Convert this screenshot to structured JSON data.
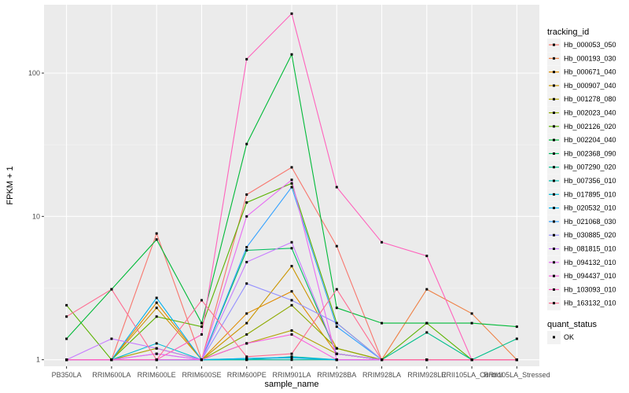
{
  "chart_data": {
    "type": "line",
    "title": "",
    "xlabel": "sample_name",
    "ylabel": "FPKM + 1",
    "yscale": "log10",
    "ylim": [
      0.9,
      300
    ],
    "yticks": [
      1,
      10,
      100
    ],
    "ytick_labels": [
      "1",
      "10",
      "100"
    ],
    "grid": true,
    "categories": [
      "PB350LA",
      "RRIM600LA",
      "RRIM600LE",
      "RRIM600SE",
      "RRIM600PE",
      "RRIM901LA",
      "RRIM928BA",
      "RRIM928LA",
      "RRIM928LE",
      "RRII105LA_Control",
      "RRII105LA_Stressed"
    ],
    "legend_title": "tracking_id",
    "series": [
      {
        "name": "Hb_000053_050",
        "color": "#F8766D",
        "values": [
          1.0,
          1.0,
          7.6,
          1.0,
          14.2,
          22.0,
          6.2,
          1.0,
          1.0,
          1.0,
          1.0
        ]
      },
      {
        "name": "Hb_000193_030",
        "color": "#EE8044",
        "values": [
          1.0,
          1.0,
          1.0,
          1.0,
          1.0,
          1.0,
          1.0,
          1.0,
          3.1,
          2.1,
          1.0
        ]
      },
      {
        "name": "Hb_000671_040",
        "color": "#DF8B00",
        "values": [
          1.0,
          1.0,
          2.5,
          1.0,
          2.1,
          3.0,
          1.1,
          1.0,
          1.0,
          1.0,
          1.0
        ]
      },
      {
        "name": "Hb_000907_040",
        "color": "#CB9600",
        "values": [
          1.0,
          1.0,
          2.3,
          1.0,
          1.8,
          4.5,
          1.2,
          1.0,
          1.0,
          1.0,
          1.0
        ]
      },
      {
        "name": "Hb_001278_080",
        "color": "#B0A100",
        "values": [
          1.0,
          1.0,
          1.2,
          1.0,
          1.3,
          1.6,
          1.1,
          1.0,
          1.0,
          1.0,
          1.0
        ]
      },
      {
        "name": "Hb_002023_040",
        "color": "#8EAA00",
        "values": [
          1.0,
          1.0,
          1.0,
          1.0,
          1.5,
          2.4,
          1.2,
          1.0,
          1.0,
          1.0,
          1.0
        ]
      },
      {
        "name": "Hb_002126_020",
        "color": "#5BB300",
        "values": [
          2.4,
          1.0,
          2.0,
          1.7,
          12.5,
          17.0,
          1.8,
          1.0,
          1.8,
          1.0,
          1.0
        ]
      },
      {
        "name": "Hb_002204_040",
        "color": "#00BA38",
        "values": [
          1.4,
          3.1,
          6.9,
          1.8,
          32.0,
          135.0,
          2.3,
          1.8,
          1.8,
          1.8,
          1.7
        ]
      },
      {
        "name": "Hb_002368_090",
        "color": "#00BD5F",
        "values": [
          1.0,
          1.0,
          1.0,
          1.0,
          5.8,
          6.0,
          1.1,
          1.0,
          1.0,
          1.0,
          1.0
        ]
      },
      {
        "name": "Hb_007290_020",
        "color": "#00C08B",
        "values": [
          1.0,
          1.0,
          1.0,
          1.0,
          1.0,
          1.05,
          1.0,
          1.0,
          1.55,
          1.0,
          1.4
        ]
      },
      {
        "name": "Hb_007356_010",
        "color": "#00BFB0",
        "values": [
          1.0,
          1.0,
          1.0,
          1.0,
          1.0,
          1.0,
          1.0,
          1.0,
          1.0,
          1.0,
          1.0
        ]
      },
      {
        "name": "Hb_017895_010",
        "color": "#00BBD4",
        "values": [
          1.0,
          1.0,
          1.3,
          1.0,
          1.02,
          1.03,
          1.0,
          1.0,
          1.0,
          1.0,
          1.0
        ]
      },
      {
        "name": "Hb_020532_010",
        "color": "#00B2EF",
        "values": [
          1.0,
          1.0,
          2.7,
          1.0,
          1.02,
          1.04,
          1.0,
          1.0,
          1.0,
          1.0,
          1.0
        ]
      },
      {
        "name": "Hb_021068_030",
        "color": "#35A2FF",
        "values": [
          1.0,
          1.0,
          1.0,
          1.0,
          6.1,
          16.0,
          1.7,
          1.0,
          1.0,
          1.0,
          1.0
        ]
      },
      {
        "name": "Hb_030885_020",
        "color": "#9590FF",
        "values": [
          1.0,
          1.0,
          1.1,
          1.0,
          3.4,
          2.6,
          1.8,
          1.0,
          1.0,
          1.0,
          1.0
        ]
      },
      {
        "name": "Hb_081815_010",
        "color": "#C77CFF",
        "values": [
          1.0,
          1.4,
          1.2,
          1.0,
          4.8,
          6.6,
          1.1,
          1.0,
          1.0,
          1.0,
          1.0
        ]
      },
      {
        "name": "Hb_094132_010",
        "color": "#E76BF3",
        "values": [
          1.0,
          1.0,
          1.1,
          1.0,
          10.0,
          18.0,
          1.0,
          1.0,
          1.0,
          1.0,
          1.0
        ]
      },
      {
        "name": "Hb_094437_010",
        "color": "#F862DF",
        "values": [
          1.0,
          1.0,
          1.0,
          1.0,
          1.3,
          1.5,
          1.0,
          1.0,
          1.0,
          1.0,
          1.0
        ]
      },
      {
        "name": "Hb_103093_010",
        "color": "#FF62BC",
        "values": [
          1.0,
          1.0,
          1.0,
          1.5,
          125.0,
          260.0,
          16.0,
          6.6,
          5.3,
          1.0,
          1.0
        ]
      },
      {
        "name": "Hb_163132_010",
        "color": "#FF6C91",
        "values": [
          2.0,
          3.1,
          1.0,
          2.6,
          1.05,
          1.1,
          3.1,
          1.0,
          1.0,
          1.0,
          1.0
        ]
      }
    ],
    "size_legend": {
      "title": "quant_status",
      "entries": [
        "OK"
      ]
    }
  }
}
